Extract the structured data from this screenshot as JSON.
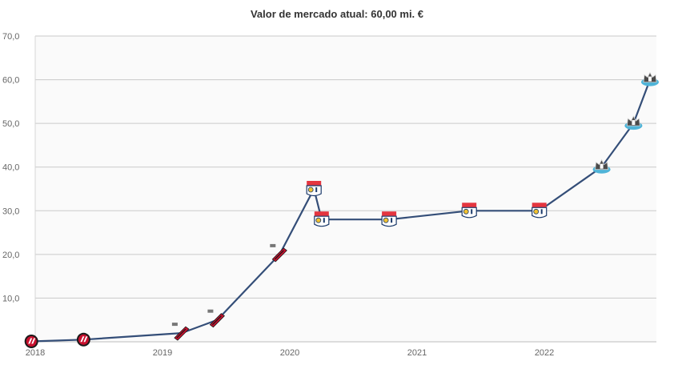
{
  "colors": {
    "line": "#344e78",
    "plot_bg": "#fafafa",
    "grid": "#c9c9c9",
    "athletico": "#c8102e",
    "lyon_red": "#e4353f",
    "lyon_blue": "#1b3a6b",
    "newcastle": "#4fb4d8"
  },
  "chart_data": {
    "type": "line",
    "title": "Valor de mercado atual: 60,00 mi. €",
    "xlabel": "",
    "ylabel": "",
    "ylim": [
      0,
      70
    ],
    "xlim": [
      2018.0,
      2022.88
    ],
    "yticks": [
      "10,0",
      "20,0",
      "30,0",
      "40,0",
      "50,0",
      "60,0",
      "70,0"
    ],
    "ytick_values": [
      10,
      20,
      30,
      40,
      50,
      60,
      70
    ],
    "xticks": [
      "2018",
      "2019",
      "2020",
      "2021",
      "2022"
    ],
    "xtick_values": [
      2018,
      2019,
      2020,
      2021,
      2022
    ],
    "grid": true,
    "series": [
      {
        "points": [
          {
            "x": 2017.97,
            "y": 0.1,
            "club": "athletico",
            "marker": "athletico-badge-icon"
          },
          {
            "x": 2018.38,
            "y": 0.5,
            "club": "athletico",
            "marker": "athletico-badge-icon"
          },
          {
            "x": 2019.15,
            "y": 2,
            "club": "athletico",
            "marker": "athletico-badge-icon"
          },
          {
            "x": 2019.43,
            "y": 5,
            "club": "athletico",
            "marker": "athletico-badge-icon"
          },
          {
            "x": 2019.92,
            "y": 20,
            "club": "athletico",
            "marker": "athletico-badge-icon"
          },
          {
            "x": 2020.19,
            "y": 35,
            "club": "lyon",
            "marker": "lyon-badge-icon"
          },
          {
            "x": 2020.25,
            "y": 28,
            "club": "lyon",
            "marker": "lyon-badge-icon"
          },
          {
            "x": 2020.78,
            "y": 28,
            "club": "lyon",
            "marker": "lyon-badge-icon"
          },
          {
            "x": 2021.41,
            "y": 30,
            "club": "lyon",
            "marker": "lyon-badge-icon"
          },
          {
            "x": 2021.96,
            "y": 30,
            "club": "lyon",
            "marker": "lyon-badge-icon"
          },
          {
            "x": 2022.45,
            "y": 40,
            "club": "newcastle",
            "marker": "newcastle-badge-icon"
          },
          {
            "x": 2022.7,
            "y": 50,
            "club": "newcastle",
            "marker": "newcastle-badge-icon"
          },
          {
            "x": 2022.83,
            "y": 60,
            "club": "newcastle",
            "marker": "newcastle-badge-icon"
          }
        ]
      }
    ]
  }
}
